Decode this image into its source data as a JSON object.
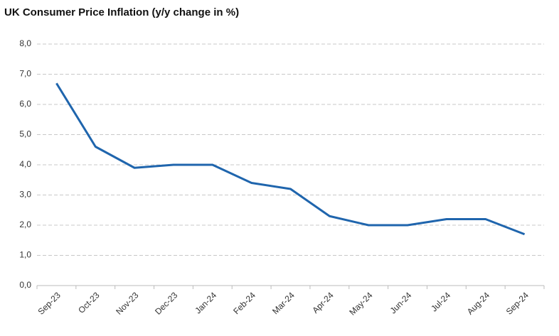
{
  "chart_data": {
    "type": "line",
    "title": "UK Consumer Price Inflation (y/y change in %)",
    "categories": [
      "Sep-23",
      "Oct-23",
      "Nov-23",
      "Dec-23",
      "Jan-24",
      "Feb-24",
      "Mar-24",
      "Apr-24",
      "May-24",
      "Jun-24",
      "Jul-24",
      "Aug-24",
      "Sep-24"
    ],
    "values": [
      6.7,
      4.6,
      3.9,
      4.0,
      4.0,
      3.4,
      3.2,
      2.3,
      2.0,
      2.0,
      2.2,
      2.2,
      1.7
    ],
    "color": "#1f65ad",
    "ylim": [
      0,
      8
    ],
    "yticks": [
      {
        "value": 0,
        "label": "0,0"
      },
      {
        "value": 1,
        "label": "1,0"
      },
      {
        "value": 2,
        "label": "2,0"
      },
      {
        "value": 3,
        "label": "3,0"
      },
      {
        "value": 4,
        "label": "4,0"
      },
      {
        "value": 5,
        "label": "5,0"
      },
      {
        "value": 6,
        "label": "6,0"
      },
      {
        "value": 7,
        "label": "7,0"
      },
      {
        "value": 8,
        "label": "8,0"
      }
    ],
    "grid": true
  }
}
